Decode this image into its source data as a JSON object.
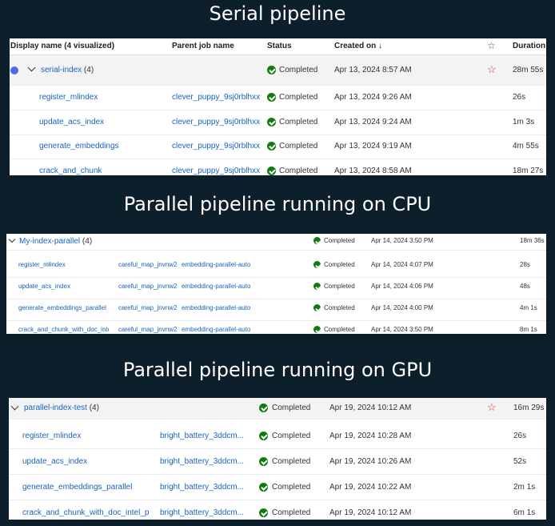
{
  "titles": {
    "serial": "Serial pipeline",
    "cpu": "Parallel pipeline running on CPU",
    "gpu": "Parallel pipeline running on GPU"
  },
  "serial": {
    "columns": {
      "display": "Display name (4 visualized)",
      "parent": "Parent job name",
      "status": "Status",
      "created": "Created on ↓",
      "duration": "Duration"
    },
    "group": {
      "name": "serial-index",
      "count": "(4)",
      "status": "Completed",
      "created": "Apr 13, 2024 8:57 AM",
      "duration": "28m 55s"
    },
    "rows": [
      {
        "name": "register_mlindex",
        "parent": "clever_puppy_9sj0rblhxx",
        "status": "Completed",
        "created": "Apr 13, 2024 9:26 AM",
        "duration": "26s"
      },
      {
        "name": "update_acs_index",
        "parent": "clever_puppy_9sj0rblhxx",
        "status": "Completed",
        "created": "Apr 13, 2024 9:24 AM",
        "duration": "1m 3s"
      },
      {
        "name": "generate_embeddings",
        "parent": "clever_puppy_9sj0rblhxx",
        "status": "Completed",
        "created": "Apr 13, 2024 9:19 AM",
        "duration": "4m 55s"
      },
      {
        "name": "crack_and_chunk",
        "parent": "clever_puppy_9sj0rblhxx",
        "status": "Completed",
        "created": "Apr 13, 2024 8:58 AM",
        "duration": "18m 27s"
      }
    ]
  },
  "cpu": {
    "group": {
      "name": "My-index-parallel",
      "count": "(4)",
      "status": "Completed",
      "created": "Apr 14, 2024 3:50 PM",
      "duration": "18m 36s"
    },
    "rows": [
      {
        "name": "register_mlindex",
        "parent": "careful_map_jnvnw2",
        "pipeline": "embedding-parallel-auto",
        "status": "Completed",
        "created": "Apr 14, 2024 4:07 PM",
        "duration": "28s"
      },
      {
        "name": "update_acs_index",
        "parent": "careful_map_jnvnw2",
        "pipeline": "embedding-parallel-auto",
        "status": "Completed",
        "created": "Apr 14, 2024 4:06 PM",
        "duration": "48s"
      },
      {
        "name": "generate_embeddings_parallel",
        "parent": "careful_map_jnvnw2",
        "pipeline": "embedding-parallel-auto",
        "status": "Completed",
        "created": "Apr 14, 2024 4:00 PM",
        "duration": "4m 1s"
      },
      {
        "name": "crack_and_chunk_with_doc_inte",
        "parent": "careful_map_jnvnw2",
        "pipeline": "embedding-parallel-auto",
        "status": "Completed",
        "created": "Apr 14, 2024 3:50 PM",
        "duration": "8m 1s"
      }
    ]
  },
  "gpu": {
    "group": {
      "name": "parallel-index-test",
      "count": "(4)",
      "status": "Completed",
      "created": "Apr 19, 2024 10:12 AM",
      "duration": "16m 29s"
    },
    "rows": [
      {
        "name": "register_mlindex",
        "parent": "bright_battery_3ddcm...",
        "status": "Completed",
        "created": "Apr 19, 2024 10:28 AM",
        "duration": "26s"
      },
      {
        "name": "update_acs_index",
        "parent": "bright_battery_3ddcm...",
        "status": "Completed",
        "created": "Apr 19, 2024 10:26 AM",
        "duration": "52s"
      },
      {
        "name": "generate_embeddings_parallel",
        "parent": "bright_battery_3ddcm...",
        "status": "Completed",
        "created": "Apr 19, 2024 10:22 AM",
        "duration": "2m 1s"
      },
      {
        "name": "crack_and_chunk_with_doc_intel_pa",
        "parent": "bright_battery_3ddcm...",
        "status": "Completed",
        "created": "Apr 19, 2024 10:12 AM",
        "duration": "6m 1s"
      }
    ]
  },
  "icons": {
    "status": "check-circle-icon",
    "favorite": "star-icon",
    "expand": "chevron-down-icon",
    "status_color": "#107c10",
    "link_color": "#1a63c0",
    "favorite_color": "#d13438"
  }
}
